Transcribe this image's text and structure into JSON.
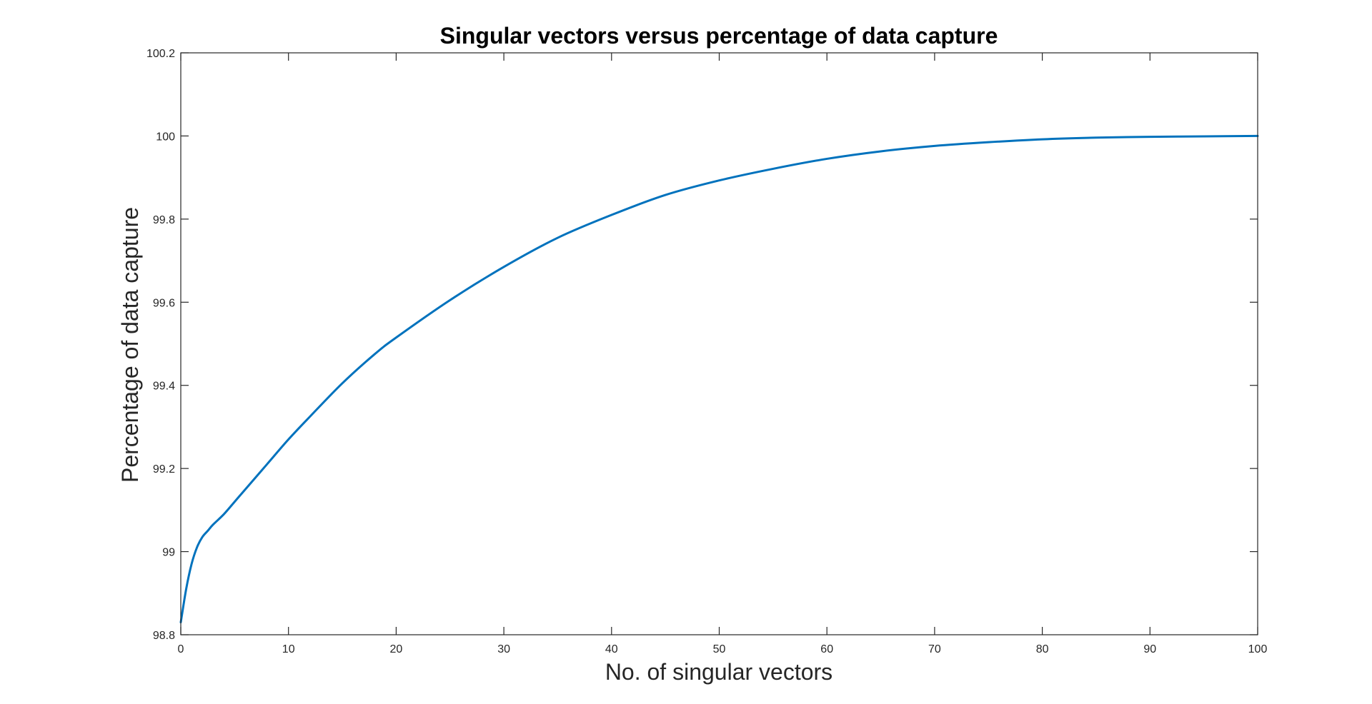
{
  "chart_data": {
    "type": "line",
    "title": "Singular vectors versus percentage of data capture",
    "xlabel": "No. of singular vectors",
    "ylabel": "Percentage of data capture",
    "xlim": [
      0,
      100
    ],
    "ylim": [
      98.8,
      100.2
    ],
    "xticks": [
      0,
      10,
      20,
      30,
      40,
      50,
      60,
      70,
      80,
      90,
      100
    ],
    "xtick_labels": [
      "0",
      "10",
      "20",
      "30",
      "40",
      "50",
      "60",
      "70",
      "80",
      "90",
      "100"
    ],
    "yticks": [
      98.8,
      99.0,
      99.2,
      99.4,
      99.6,
      99.8,
      100.0,
      100.2
    ],
    "ytick_labels": [
      "98.8",
      "99",
      "99.2",
      "99.4",
      "99.6",
      "99.8",
      "100",
      "100.2"
    ],
    "grid": false,
    "series": [
      {
        "color": "#0072BD",
        "x": [
          0,
          0.5,
          1,
          1.5,
          2,
          2.5,
          3,
          4,
          5,
          6,
          8,
          10,
          12,
          15,
          18,
          20,
          25,
          30,
          35,
          40,
          45,
          50,
          55,
          60,
          65,
          70,
          75,
          80,
          85,
          90,
          95,
          100
        ],
        "y": [
          98.83,
          98.91,
          98.97,
          99.01,
          99.035,
          99.05,
          99.065,
          99.09,
          99.12,
          99.15,
          99.21,
          99.27,
          99.325,
          99.405,
          99.475,
          99.515,
          99.605,
          99.685,
          99.755,
          99.81,
          99.858,
          99.893,
          99.921,
          99.945,
          99.963,
          99.976,
          99.985,
          99.992,
          99.996,
          99.998,
          99.999,
          100.0
        ]
      }
    ]
  }
}
